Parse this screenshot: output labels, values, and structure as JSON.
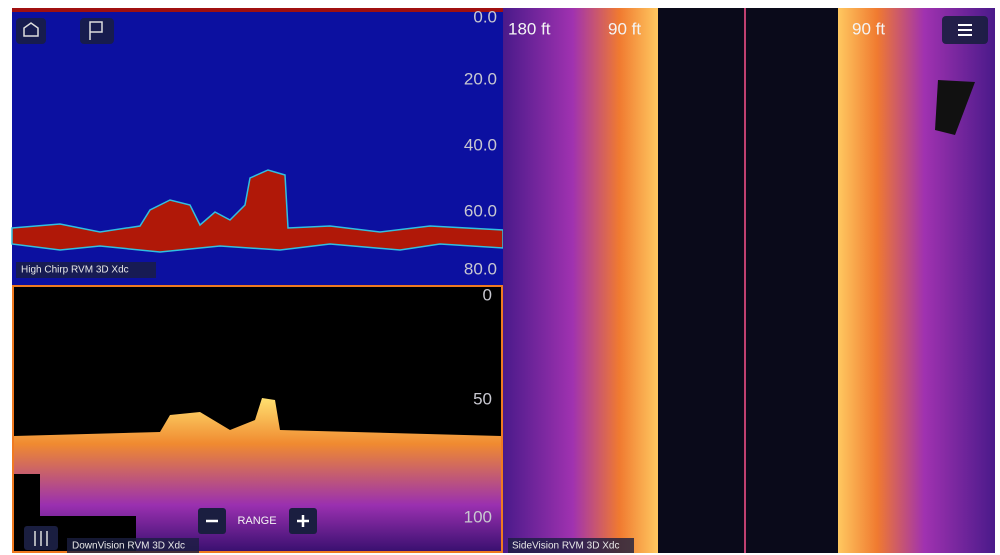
{
  "high_chirp": {
    "label": "High Chirp RVM 3D Xdc",
    "depth_labels": [
      "0.0",
      "20.0",
      "40.0",
      "60.0",
      "80.0"
    ]
  },
  "downvision": {
    "label": "DownVision RVM 3D Xdc",
    "depth_labels": [
      "0",
      "50",
      "100"
    ],
    "range_label": "RANGE"
  },
  "sidevision": {
    "label": "SideVision RVM 3D Xdc",
    "range_labels": [
      "180 ft",
      "90 ft",
      "90 ft"
    ]
  }
}
